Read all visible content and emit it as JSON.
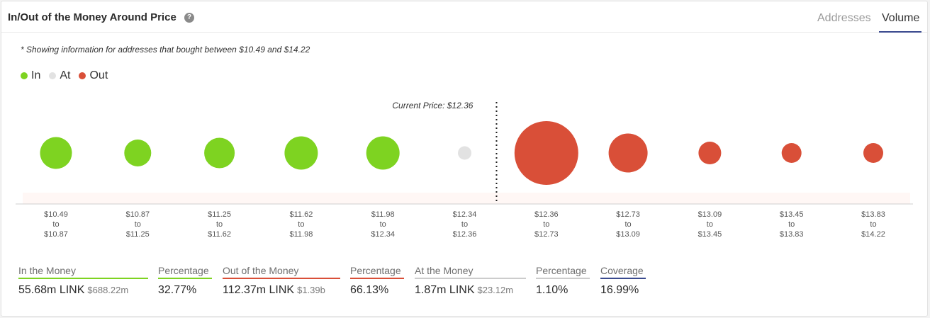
{
  "header": {
    "title": "In/Out of the Money Around Price",
    "tabs": [
      {
        "label": "Addresses",
        "active": false
      },
      {
        "label": "Volume",
        "active": true
      }
    ]
  },
  "note": "* Showing information for addresses that bought between $10.49 and $14.22",
  "legend": [
    {
      "label": "In",
      "color": "#7ed321"
    },
    {
      "label": "At",
      "color": "#e2e2e2"
    },
    {
      "label": "Out",
      "color": "#d94f38"
    }
  ],
  "colors": {
    "in": "#7ed321",
    "at": "#e2e2e2",
    "out": "#d94f38",
    "coverage": "#3a4a8e"
  },
  "chart_data": {
    "type": "bubble",
    "current_price_label": "Current Price: $12.36",
    "categories": [
      {
        "from": "$10.49",
        "to": "$10.87",
        "status": "in",
        "relative_size": 45
      },
      {
        "from": "$10.87",
        "to": "$11.25",
        "status": "in",
        "relative_size": 38
      },
      {
        "from": "$11.25",
        "to": "$11.62",
        "status": "in",
        "relative_size": 43
      },
      {
        "from": "$11.62",
        "to": "$11.98",
        "status": "in",
        "relative_size": 47
      },
      {
        "from": "$11.98",
        "to": "$12.34",
        "status": "in",
        "relative_size": 47
      },
      {
        "from": "$12.34",
        "to": "$12.36",
        "status": "at",
        "relative_size": 19
      },
      {
        "from": "$12.36",
        "to": "$12.73",
        "status": "out",
        "relative_size": 90
      },
      {
        "from": "$12.73",
        "to": "$13.09",
        "status": "out",
        "relative_size": 55
      },
      {
        "from": "$13.09",
        "to": "$13.45",
        "status": "out",
        "relative_size": 32
      },
      {
        "from": "$13.45",
        "to": "$13.83",
        "status": "out",
        "relative_size": 28
      },
      {
        "from": "$13.83",
        "to": "$14.22",
        "status": "out",
        "relative_size": 28
      }
    ],
    "range_separator": "to"
  },
  "stats": [
    {
      "header": "In the Money",
      "value": "55.68m LINK",
      "sub": "$688.22m",
      "line": "#7ed321"
    },
    {
      "header": "Percentage",
      "value": "32.77%",
      "sub": "",
      "line": "#7ed321"
    },
    {
      "header": "Out of the Money",
      "value": "112.37m LINK",
      "sub": "$1.39b",
      "line": "#d94f38"
    },
    {
      "header": "Percentage",
      "value": "66.13%",
      "sub": "",
      "line": "#d94f38"
    },
    {
      "header": "At the Money",
      "value": "1.87m LINK",
      "sub": "$23.12m",
      "line": "#cccccc"
    },
    {
      "header": "Percentage",
      "value": "1.10%",
      "sub": "",
      "line": "#cccccc"
    },
    {
      "header": "Coverage",
      "value": "16.99%",
      "sub": "",
      "line": "#3a4a8e"
    }
  ]
}
